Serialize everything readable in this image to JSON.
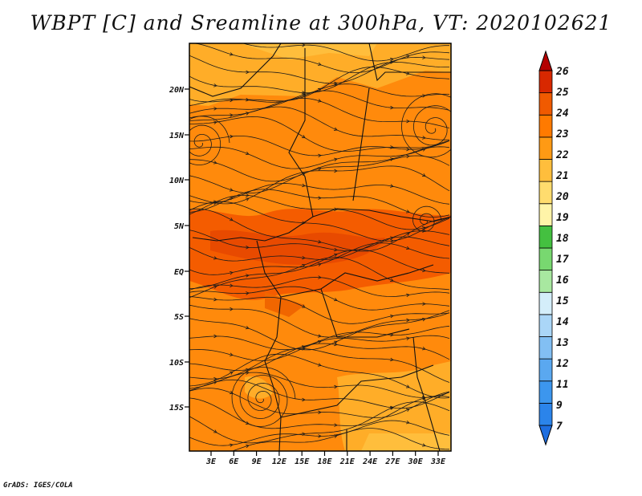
{
  "title": "WBPT [C] and Sreamline at 300hPa, VT: 2020102621",
  "credit": "GrADS: IGES/COLA",
  "map": {
    "lat_ticks": [
      "20N",
      "15N",
      "10N",
      "5N",
      "EQ",
      "5S",
      "10S",
      "15S"
    ],
    "lon_ticks": [
      "3E",
      "6E",
      "9E",
      "12E",
      "15E",
      "18E",
      "21E",
      "24E",
      "27E",
      "30E",
      "33E"
    ]
  },
  "colorbar": {
    "labels": [
      "7",
      "9",
      "11",
      "12",
      "13",
      "14",
      "15",
      "16",
      "17",
      "18",
      "19",
      "20",
      "21",
      "22",
      "23",
      "24",
      "25",
      "26"
    ],
    "colors": [
      "#1e6ee0",
      "#2b84ea",
      "#3c96ee",
      "#5aa8f0",
      "#82bff3",
      "#aad6f7",
      "#d4eefa",
      "#a8e8a0",
      "#78d870",
      "#44c040",
      "#fff4a8",
      "#ffdc6e",
      "#ffbe3c",
      "#ff9a14",
      "#ff7a00",
      "#f05a00",
      "#d82800",
      "#b40000"
    ]
  }
}
